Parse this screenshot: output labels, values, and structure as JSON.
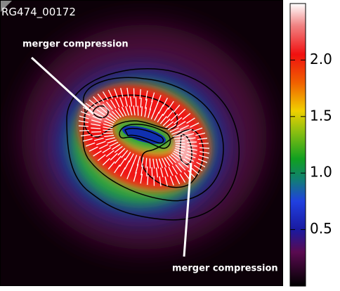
{
  "chart_data": {
    "type": "colormap",
    "label": "RG474_00172",
    "annotations": [
      "merger compression",
      "merger compression"
    ],
    "colorbar": {
      "lim": [
        0,
        2.5
      ],
      "ticks": [
        0.5,
        {
          "value": 1,
          "label": "1.0"
        },
        1.5,
        {
          "value": 2,
          "label": "2.0"
        }
      ]
    }
  }
}
